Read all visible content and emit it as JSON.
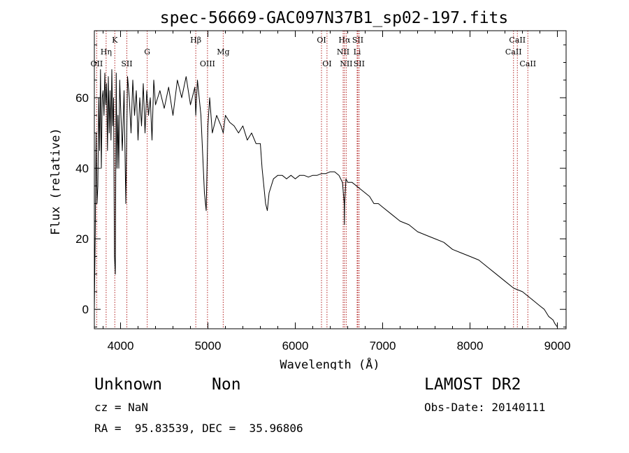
{
  "chart_data": {
    "type": "line",
    "title": "spec-56669-GAC097N37B1_sp02-197.fits",
    "xlabel": "Wavelength (Å)",
    "ylabel": "Flux (relative)",
    "xlim": [
      3700,
      9100
    ],
    "ylim": [
      -5.5,
      79
    ],
    "x_ticks": [
      4000,
      5000,
      6000,
      7000,
      8000,
      9000
    ],
    "y_ticks": [
      0,
      20,
      40,
      60
    ],
    "grid": false,
    "line_color": "#000000",
    "marker_color": "#b22222",
    "series": [
      {
        "x": [
          3700,
          3710,
          3720,
          3730,
          3740,
          3750,
          3760,
          3770,
          3780,
          3790,
          3800,
          3810,
          3820,
          3830,
          3840,
          3850,
          3860,
          3870,
          3880,
          3890,
          3900,
          3910,
          3920,
          3930,
          3940,
          3950,
          3960,
          3970,
          3980,
          3990,
          4000,
          4020,
          4040,
          4060,
          4080,
          4100,
          4120,
          4140,
          4160,
          4180,
          4200,
          4220,
          4240,
          4260,
          4280,
          4300,
          4320,
          4340,
          4360,
          4380,
          4400,
          4450,
          4500,
          4550,
          4600,
          4650,
          4700,
          4750,
          4800,
          4850,
          4861,
          4880,
          4920,
          4960,
          4980,
          5000,
          5020,
          5050,
          5100,
          5150,
          5175,
          5200,
          5250,
          5300,
          5350,
          5400,
          5450,
          5500,
          5550,
          5600,
          5620,
          5640,
          5660,
          5680,
          5700,
          5750,
          5800,
          5850,
          5900,
          5950,
          6000,
          6050,
          6100,
          6150,
          6200,
          6250,
          6300,
          6350,
          6400,
          6450,
          6500,
          6540,
          6560,
          6562,
          6565,
          6580,
          6600,
          6650,
          6700,
          6750,
          6800,
          6850,
          6900,
          6950,
          7000,
          7100,
          7200,
          7300,
          7400,
          7500,
          7600,
          7700,
          7800,
          7900,
          8000,
          8100,
          8200,
          8300,
          8400,
          8500,
          8600,
          8700,
          8800,
          8850,
          8900,
          8950,
          8970,
          9000
        ],
        "y": [
          0,
          22,
          50,
          30,
          35,
          60,
          45,
          68,
          40,
          60,
          62,
          55,
          67,
          58,
          64,
          45,
          66,
          50,
          62,
          48,
          68,
          52,
          60,
          15,
          10,
          67,
          40,
          55,
          40,
          65,
          58,
          45,
          62,
          30,
          66,
          60,
          50,
          65,
          55,
          62,
          48,
          60,
          52,
          64,
          50,
          62,
          55,
          60,
          48,
          65,
          58,
          62,
          57,
          63,
          55,
          65,
          60,
          66,
          58,
          63,
          55,
          65,
          55,
          33,
          28,
          52,
          60,
          50,
          55,
          52,
          50,
          55,
          53,
          52,
          50,
          52,
          48,
          50,
          47,
          47,
          40,
          35,
          30,
          28,
          33,
          37,
          38,
          38,
          37,
          38,
          37,
          38,
          38,
          37.5,
          38,
          38,
          38.5,
          38.5,
          39,
          39,
          38,
          36,
          30,
          24,
          30,
          37,
          36,
          36,
          35,
          34,
          33,
          32,
          30,
          30,
          29,
          27,
          25,
          24,
          22,
          21,
          20,
          19,
          17,
          16,
          15,
          14,
          12,
          10,
          8,
          6,
          5,
          3,
          1,
          0,
          -2,
          -3,
          -4,
          -5
        ]
      }
    ],
    "lines": [
      {
        "label": "OII",
        "x": 3727,
        "row": 3
      },
      {
        "label": "Hη",
        "x": 3835,
        "row": 2
      },
      {
        "label": "K",
        "x": 3934,
        "row": 1
      },
      {
        "label": "SII",
        "x": 4072,
        "row": 3
      },
      {
        "label": "G",
        "x": 4305,
        "row": 2
      },
      {
        "label": "Hβ",
        "x": 4861,
        "row": 1
      },
      {
        "label": "OIII",
        "x": 4995,
        "row": 3
      },
      {
        "label": "Mg",
        "x": 5175,
        "row": 2
      },
      {
        "label": "OI",
        "x": 6300,
        "row": 1
      },
      {
        "label": "OI",
        "x": 6363,
        "row": 3
      },
      {
        "label": "Hα",
        "x": 6563,
        "row": 1
      },
      {
        "label": "NII",
        "x": 6548,
        "row": 2
      },
      {
        "label": "NII",
        "x": 6583,
        "row": 3
      },
      {
        "label": "SII",
        "x": 6716,
        "row": 1
      },
      {
        "label": "Li",
        "x": 6708,
        "row": 2
      },
      {
        "label": "SII",
        "x": 6731,
        "row": 3
      },
      {
        "label": "CaII",
        "x": 8542,
        "row": 1
      },
      {
        "label": "CaII",
        "x": 8498,
        "row": 2
      },
      {
        "label": "CaII",
        "x": 8662,
        "row": 3
      }
    ]
  },
  "info": {
    "class": "Unknown",
    "subclass": "Non",
    "survey": "LAMOST DR2",
    "cz": "cz = NaN",
    "obs_date": "Obs-Date: 20140111",
    "radec": "RA =  95.83539, DEC =  35.96806"
  }
}
